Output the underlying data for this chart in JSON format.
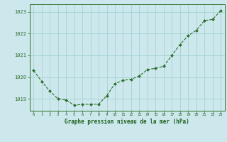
{
  "hours": [
    0,
    1,
    2,
    3,
    4,
    5,
    6,
    7,
    8,
    9,
    10,
    11,
    12,
    13,
    14,
    15,
    16,
    17,
    18,
    19,
    20,
    21,
    22,
    23
  ],
  "pressure": [
    1020.3,
    1019.8,
    1019.35,
    1019.0,
    1018.95,
    1018.7,
    1018.75,
    1018.75,
    1018.75,
    1019.15,
    1019.7,
    1019.85,
    1019.9,
    1020.05,
    1020.35,
    1020.4,
    1020.5,
    1021.0,
    1021.5,
    1021.9,
    1022.15,
    1022.6,
    1022.65,
    1023.05
  ],
  "ylim": [
    1018.45,
    1023.35
  ],
  "yticks": [
    1019,
    1020,
    1021,
    1022,
    1023
  ],
  "xticks": [
    0,
    1,
    2,
    3,
    4,
    5,
    6,
    7,
    8,
    9,
    10,
    11,
    12,
    13,
    14,
    15,
    16,
    17,
    18,
    19,
    20,
    21,
    22,
    23
  ],
  "line_color": "#2d6e2d",
  "marker_color": "#2d6e2d",
  "bg_color": "#cce8ec",
  "grid_color": "#9ecece",
  "xlabel": "Graphe pression niveau de la mer (hPa)",
  "xlabel_color": "#1a5e1a",
  "axis_color": "#2d6e2d",
  "tick_color": "#2d6e2d",
  "font_family": "monospace"
}
